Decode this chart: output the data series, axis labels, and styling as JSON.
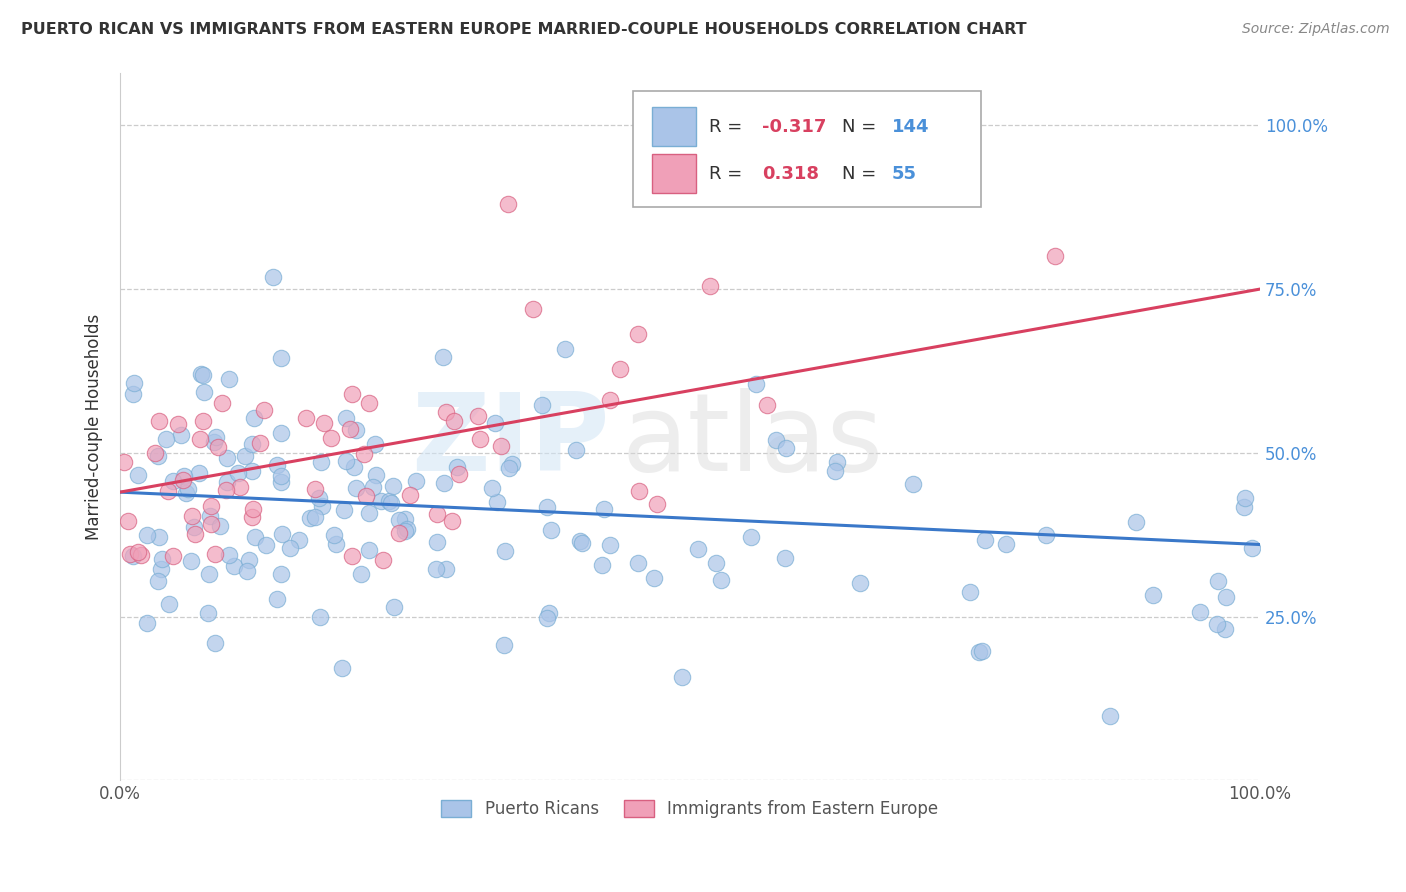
{
  "title": "PUERTO RICAN VS IMMIGRANTS FROM EASTERN EUROPE MARRIED-COUPLE HOUSEHOLDS CORRELATION CHART",
  "source": "Source: ZipAtlas.com",
  "ylabel": "Married-couple Households",
  "blue_color": "#aac4e8",
  "blue_edge": "#7aaed4",
  "pink_color": "#f0a0b8",
  "pink_edge": "#d86080",
  "blue_line_color": "#3a78c9",
  "pink_line_color": "#d84060",
  "legend_blue_R": "-0.317",
  "legend_blue_N": "144",
  "legend_pink_R": "0.318",
  "legend_pink_N": "55",
  "blue_R": -0.317,
  "blue_N": 144,
  "pink_R": 0.318,
  "pink_N": 55,
  "background_color": "#ffffff",
  "grid_color": "#cccccc",
  "title_color": "#333333",
  "axis_label_color": "#4a90d9",
  "legend_value_color": "#4a90d9",
  "seed_blue": 42,
  "seed_pink": 7
}
